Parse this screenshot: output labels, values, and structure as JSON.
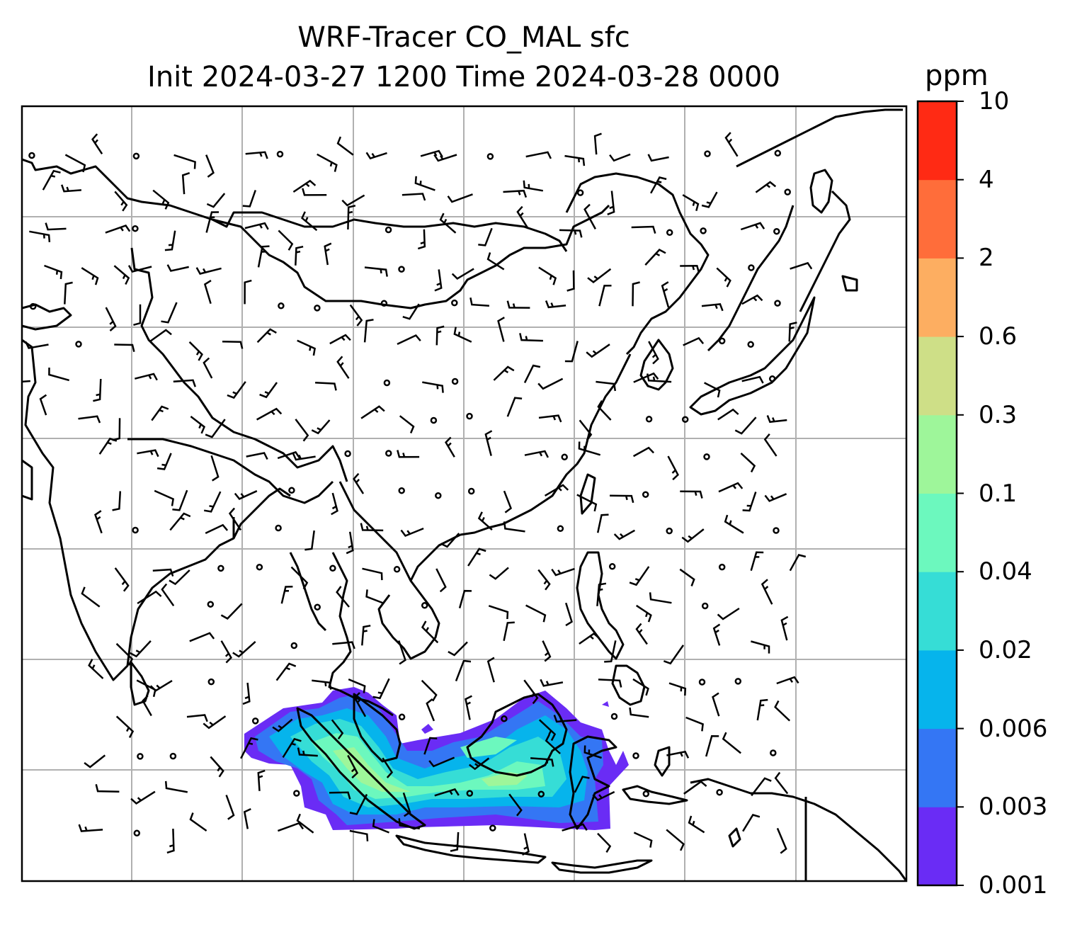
{
  "title_line1": "WRF-Tracer CO_MAL sfc",
  "title_line2": "Init 2024-03-27 1200 Time 2024-03-28 0000",
  "colorbar": {
    "units": "ppm",
    "tick_labels": [
      "0.001",
      "0.003",
      "0.006",
      "0.02",
      "0.04",
      "0.1",
      "0.3",
      "0.6",
      "2",
      "4",
      "10"
    ],
    "colors": [
      "#6a2cf5",
      "#3476f4",
      "#06b4ec",
      "#36ddd6",
      "#6cf8be",
      "#9ef69a",
      "#cedf87",
      "#fdae61",
      "#ff6d3a",
      "#ff2a14"
    ]
  },
  "map": {
    "domain": "Southeast Asia / East Asia",
    "grid": true,
    "fields": [
      "CO_MAL tracer concentration (filled contours over Malaysia/Indonesia region)",
      "surface wind barbs",
      "coastlines and country borders"
    ]
  }
}
